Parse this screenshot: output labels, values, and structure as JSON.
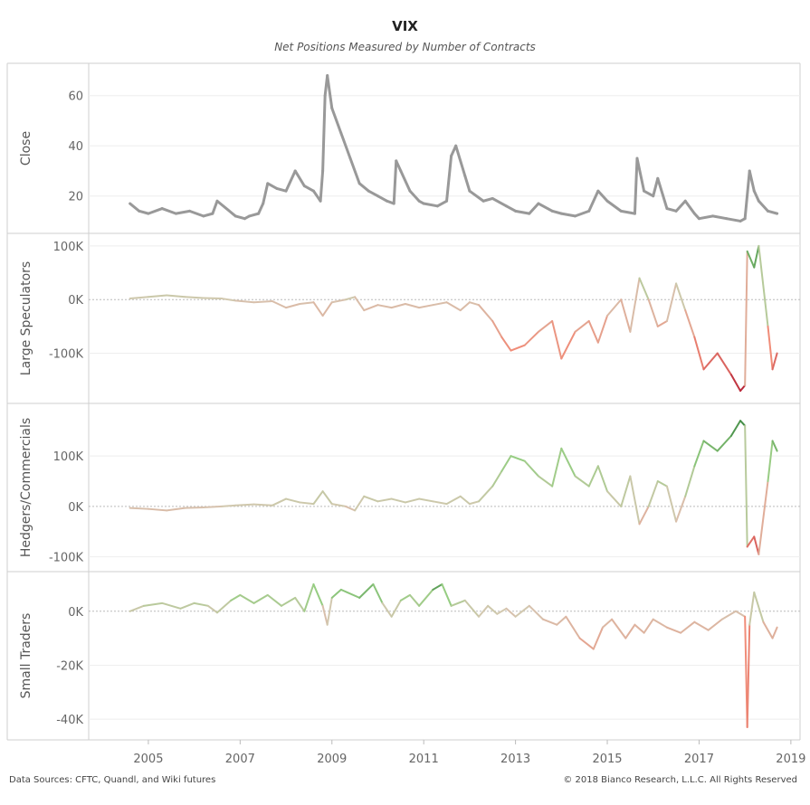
{
  "title": "VIX",
  "subtitle": "Net Positions Measured by Number of Contracts",
  "footer": {
    "left": "Data Sources: CFTC, Quandl, and Wiki futures",
    "right": "© 2018 Bianco Research, L.L.C. All Rights Reserved"
  },
  "chart_data": {
    "type": "line",
    "x_axis": {
      "range": [
        2003.7,
        2019.2
      ],
      "ticks": [
        2005,
        2007,
        2009,
        2011,
        2013,
        2015,
        2017,
        2019
      ],
      "tick_labels": [
        "2005",
        "2007",
        "2009",
        "2011",
        "2013",
        "2015",
        "2017",
        "2019"
      ]
    },
    "panels": [
      {
        "id": "close",
        "ylabel": "Close",
        "ylim": [
          8,
          70
        ],
        "ticks": [
          20,
          40,
          60
        ],
        "tick_labels": [
          "20",
          "40",
          "60"
        ],
        "zero_line": false,
        "color": "#999999",
        "points": [
          [
            2004.6,
            17
          ],
          [
            2004.8,
            14
          ],
          [
            2005.0,
            13
          ],
          [
            2005.3,
            15
          ],
          [
            2005.6,
            13
          ],
          [
            2005.9,
            14
          ],
          [
            2006.2,
            12
          ],
          [
            2006.4,
            13
          ],
          [
            2006.5,
            18
          ],
          [
            2006.9,
            12
          ],
          [
            2007.1,
            11
          ],
          [
            2007.2,
            12
          ],
          [
            2007.4,
            13
          ],
          [
            2007.5,
            17
          ],
          [
            2007.6,
            25
          ],
          [
            2007.8,
            23
          ],
          [
            2008.0,
            22
          ],
          [
            2008.2,
            30
          ],
          [
            2008.4,
            24
          ],
          [
            2008.6,
            22
          ],
          [
            2008.75,
            18
          ],
          [
            2008.8,
            30
          ],
          [
            2008.85,
            60
          ],
          [
            2008.9,
            68
          ],
          [
            2009.0,
            55
          ],
          [
            2009.2,
            45
          ],
          [
            2009.4,
            35
          ],
          [
            2009.6,
            25
          ],
          [
            2009.8,
            22
          ],
          [
            2010.0,
            20
          ],
          [
            2010.2,
            18
          ],
          [
            2010.35,
            17
          ],
          [
            2010.4,
            34
          ],
          [
            2010.5,
            30
          ],
          [
            2010.7,
            22
          ],
          [
            2010.9,
            18
          ],
          [
            2011.0,
            17
          ],
          [
            2011.3,
            16
          ],
          [
            2011.5,
            18
          ],
          [
            2011.6,
            36
          ],
          [
            2011.7,
            40
          ],
          [
            2011.9,
            28
          ],
          [
            2012.0,
            22
          ],
          [
            2012.3,
            18
          ],
          [
            2012.5,
            19
          ],
          [
            2012.8,
            16
          ],
          [
            2013.0,
            14
          ],
          [
            2013.3,
            13
          ],
          [
            2013.5,
            17
          ],
          [
            2013.8,
            14
          ],
          [
            2014.0,
            13
          ],
          [
            2014.3,
            12
          ],
          [
            2014.6,
            14
          ],
          [
            2014.8,
            22
          ],
          [
            2015.0,
            18
          ],
          [
            2015.3,
            14
          ],
          [
            2015.6,
            13
          ],
          [
            2015.65,
            35
          ],
          [
            2015.8,
            22
          ],
          [
            2016.0,
            20
          ],
          [
            2016.1,
            27
          ],
          [
            2016.3,
            15
          ],
          [
            2016.5,
            14
          ],
          [
            2016.7,
            18
          ],
          [
            2016.9,
            13
          ],
          [
            2017.0,
            11
          ],
          [
            2017.3,
            12
          ],
          [
            2017.6,
            11
          ],
          [
            2017.9,
            10
          ],
          [
            2018.0,
            11
          ],
          [
            2018.1,
            30
          ],
          [
            2018.2,
            22
          ],
          [
            2018.3,
            18
          ],
          [
            2018.5,
            14
          ],
          [
            2018.7,
            13
          ]
        ]
      },
      {
        "id": "large",
        "ylabel": "Large Speculators",
        "ylim": [
          -180000,
          110000
        ],
        "ticks": [
          100000,
          0,
          -100000
        ],
        "tick_labels": [
          "100K",
          "0K",
          "-100K"
        ],
        "zero_line": true,
        "points": [
          [
            2004.6,
            2000
          ],
          [
            2005.0,
            5000
          ],
          [
            2005.4,
            8000
          ],
          [
            2005.8,
            5000
          ],
          [
            2006.2,
            3000
          ],
          [
            2006.6,
            2000
          ],
          [
            2006.9,
            -2000
          ],
          [
            2007.3,
            -5000
          ],
          [
            2007.7,
            -3000
          ],
          [
            2008.0,
            -15000
          ],
          [
            2008.3,
            -8000
          ],
          [
            2008.6,
            -5000
          ],
          [
            2008.8,
            -30000
          ],
          [
            2009.0,
            -5000
          ],
          [
            2009.3,
            0
          ],
          [
            2009.5,
            5000
          ],
          [
            2009.7,
            -20000
          ],
          [
            2010.0,
            -10000
          ],
          [
            2010.3,
            -15000
          ],
          [
            2010.6,
            -8000
          ],
          [
            2010.9,
            -15000
          ],
          [
            2011.2,
            -10000
          ],
          [
            2011.5,
            -5000
          ],
          [
            2011.8,
            -20000
          ],
          [
            2012.0,
            -5000
          ],
          [
            2012.2,
            -10000
          ],
          [
            2012.5,
            -40000
          ],
          [
            2012.7,
            -70000
          ],
          [
            2012.9,
            -95000
          ],
          [
            2013.2,
            -85000
          ],
          [
            2013.5,
            -60000
          ],
          [
            2013.8,
            -40000
          ],
          [
            2014.0,
            -110000
          ],
          [
            2014.3,
            -60000
          ],
          [
            2014.6,
            -40000
          ],
          [
            2014.8,
            -80000
          ],
          [
            2015.0,
            -30000
          ],
          [
            2015.3,
            0
          ],
          [
            2015.5,
            -60000
          ],
          [
            2015.7,
            40000
          ],
          [
            2015.9,
            0
          ],
          [
            2016.1,
            -50000
          ],
          [
            2016.3,
            -40000
          ],
          [
            2016.5,
            30000
          ],
          [
            2016.7,
            -20000
          ],
          [
            2016.9,
            -70000
          ],
          [
            2017.1,
            -130000
          ],
          [
            2017.4,
            -100000
          ],
          [
            2017.7,
            -140000
          ],
          [
            2017.9,
            -170000
          ],
          [
            2018.0,
            -160000
          ],
          [
            2018.05,
            90000
          ],
          [
            2018.2,
            60000
          ],
          [
            2018.3,
            100000
          ],
          [
            2018.5,
            -50000
          ],
          [
            2018.6,
            -130000
          ],
          [
            2018.7,
            -100000
          ]
        ]
      },
      {
        "id": "hedgers",
        "ylabel": "Hedgers/Commercials",
        "ylim": [
          -115000,
          190000
        ],
        "ticks": [
          100000,
          0,
          -100000
        ],
        "tick_labels": [
          "100K",
          "0K",
          "-100K"
        ],
        "zero_line": true,
        "points": [
          [
            2004.6,
            -3000
          ],
          [
            2005.0,
            -5000
          ],
          [
            2005.4,
            -8000
          ],
          [
            2005.8,
            -3000
          ],
          [
            2006.2,
            -2000
          ],
          [
            2006.6,
            0
          ],
          [
            2006.9,
            2000
          ],
          [
            2007.3,
            4000
          ],
          [
            2007.7,
            2000
          ],
          [
            2008.0,
            15000
          ],
          [
            2008.3,
            8000
          ],
          [
            2008.6,
            5000
          ],
          [
            2008.8,
            30000
          ],
          [
            2009.0,
            5000
          ],
          [
            2009.3,
            0
          ],
          [
            2009.5,
            -8000
          ],
          [
            2009.7,
            20000
          ],
          [
            2010.0,
            10000
          ],
          [
            2010.3,
            15000
          ],
          [
            2010.6,
            8000
          ],
          [
            2010.9,
            15000
          ],
          [
            2011.2,
            10000
          ],
          [
            2011.5,
            5000
          ],
          [
            2011.8,
            20000
          ],
          [
            2012.0,
            5000
          ],
          [
            2012.2,
            10000
          ],
          [
            2012.5,
            40000
          ],
          [
            2012.7,
            70000
          ],
          [
            2012.9,
            100000
          ],
          [
            2013.2,
            90000
          ],
          [
            2013.5,
            60000
          ],
          [
            2013.8,
            40000
          ],
          [
            2014.0,
            115000
          ],
          [
            2014.3,
            60000
          ],
          [
            2014.6,
            40000
          ],
          [
            2014.8,
            80000
          ],
          [
            2015.0,
            30000
          ],
          [
            2015.3,
            0
          ],
          [
            2015.5,
            60000
          ],
          [
            2015.7,
            -35000
          ],
          [
            2015.9,
            0
          ],
          [
            2016.1,
            50000
          ],
          [
            2016.3,
            40000
          ],
          [
            2016.5,
            -30000
          ],
          [
            2016.7,
            20000
          ],
          [
            2016.9,
            80000
          ],
          [
            2017.1,
            130000
          ],
          [
            2017.4,
            110000
          ],
          [
            2017.7,
            140000
          ],
          [
            2017.9,
            170000
          ],
          [
            2018.0,
            160000
          ],
          [
            2018.05,
            -80000
          ],
          [
            2018.2,
            -60000
          ],
          [
            2018.3,
            -95000
          ],
          [
            2018.5,
            50000
          ],
          [
            2018.6,
            130000
          ],
          [
            2018.7,
            110000
          ]
        ]
      },
      {
        "id": "small",
        "ylabel": "Small Traders",
        "ylim": [
          -45000,
          12000
        ],
        "ticks": [
          0,
          -20000,
          -40000
        ],
        "tick_labels": [
          "0K",
          "-20K",
          "-40K"
        ],
        "zero_line": true,
        "points": [
          [
            2004.6,
            0
          ],
          [
            2004.9,
            2000
          ],
          [
            2005.3,
            3000
          ],
          [
            2005.7,
            1000
          ],
          [
            2006.0,
            3000
          ],
          [
            2006.3,
            2000
          ],
          [
            2006.5,
            -500
          ],
          [
            2006.8,
            4000
          ],
          [
            2007.0,
            6000
          ],
          [
            2007.3,
            3000
          ],
          [
            2007.6,
            6000
          ],
          [
            2007.9,
            2000
          ],
          [
            2008.2,
            5000
          ],
          [
            2008.4,
            0
          ],
          [
            2008.6,
            10000
          ],
          [
            2008.8,
            2000
          ],
          [
            2008.9,
            -5000
          ],
          [
            2009.0,
            5000
          ],
          [
            2009.2,
            8000
          ],
          [
            2009.6,
            5000
          ],
          [
            2009.9,
            10000
          ],
          [
            2010.1,
            3000
          ],
          [
            2010.3,
            -2000
          ],
          [
            2010.5,
            4000
          ],
          [
            2010.7,
            6000
          ],
          [
            2010.9,
            2000
          ],
          [
            2011.2,
            8000
          ],
          [
            2011.4,
            10000
          ],
          [
            2011.6,
            2000
          ],
          [
            2011.9,
            4000
          ],
          [
            2012.2,
            -2000
          ],
          [
            2012.4,
            2000
          ],
          [
            2012.6,
            -1000
          ],
          [
            2012.8,
            1000
          ],
          [
            2013.0,
            -2000
          ],
          [
            2013.3,
            2000
          ],
          [
            2013.6,
            -3000
          ],
          [
            2013.9,
            -5000
          ],
          [
            2014.1,
            -2000
          ],
          [
            2014.4,
            -10000
          ],
          [
            2014.7,
            -14000
          ],
          [
            2014.9,
            -6000
          ],
          [
            2015.1,
            -3000
          ],
          [
            2015.4,
            -10000
          ],
          [
            2015.6,
            -5000
          ],
          [
            2015.8,
            -8000
          ],
          [
            2016.0,
            -3000
          ],
          [
            2016.3,
            -6000
          ],
          [
            2016.6,
            -8000
          ],
          [
            2016.9,
            -4000
          ],
          [
            2017.2,
            -7000
          ],
          [
            2017.5,
            -3000
          ],
          [
            2017.8,
            0
          ],
          [
            2018.0,
            -2000
          ],
          [
            2018.05,
            -43000
          ],
          [
            2018.1,
            -5000
          ],
          [
            2018.2,
            7000
          ],
          [
            2018.4,
            -4000
          ],
          [
            2018.6,
            -10000
          ],
          [
            2018.7,
            -6000
          ]
        ]
      }
    ]
  }
}
